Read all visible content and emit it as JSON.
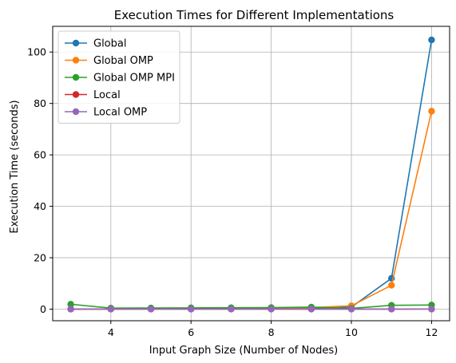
{
  "chart_data": {
    "type": "line",
    "title": "Execution Times for Different Implementations",
    "xlabel": "Input Graph Size (Number of Nodes)",
    "ylabel": "Execution Time (seconds)",
    "x": [
      3,
      4,
      5,
      6,
      7,
      8,
      9,
      10,
      11,
      12
    ],
    "xlim": [
      2.55,
      12.45
    ],
    "ylim": [
      -4.5,
      110
    ],
    "xticks": [
      4,
      6,
      8,
      10,
      12
    ],
    "yticks": [
      0,
      20,
      40,
      60,
      80,
      100
    ],
    "grid": true,
    "legend_position": "top-left",
    "series": [
      {
        "name": "Global",
        "color": "#1f77b4",
        "values": [
          0.02,
          0.05,
          0.08,
          0.15,
          0.25,
          0.35,
          0.5,
          0.8,
          12.0,
          104.7
        ]
      },
      {
        "name": "Global OMP",
        "color": "#ff7f0e",
        "values": [
          0.03,
          0.06,
          0.1,
          0.18,
          0.3,
          0.45,
          0.6,
          1.3,
          9.3,
          77.0
        ]
      },
      {
        "name": "Global OMP MPI",
        "color": "#2ca02c",
        "values": [
          1.9,
          0.4,
          0.45,
          0.5,
          0.55,
          0.6,
          0.8,
          0.3,
          1.5,
          1.6
        ]
      },
      {
        "name": "Local",
        "color": "#d62728",
        "values": [
          0.01,
          0.01,
          0.01,
          0.01,
          0.01,
          0.01,
          0.02,
          0.02,
          0.03,
          0.04
        ]
      },
      {
        "name": "Local OMP",
        "color": "#9467bd",
        "values": [
          0.01,
          0.01,
          0.01,
          0.01,
          0.01,
          0.01,
          0.02,
          0.02,
          0.03,
          0.04
        ]
      }
    ]
  }
}
